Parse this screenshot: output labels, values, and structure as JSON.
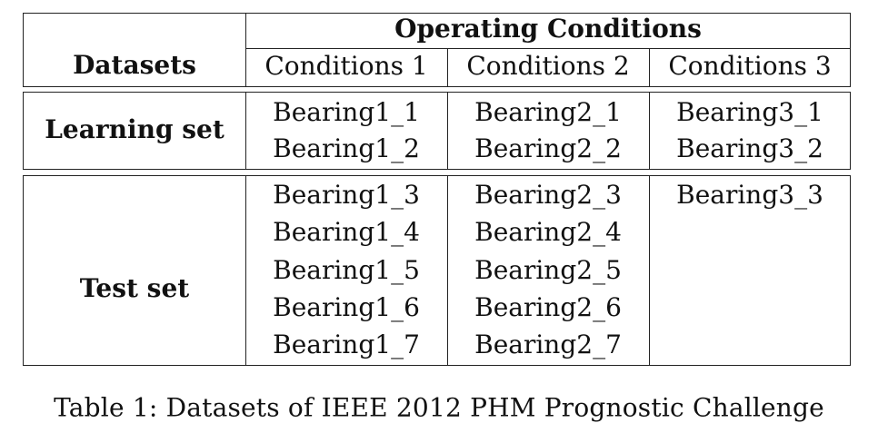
{
  "table": {
    "header": {
      "group_label": "Operating Conditions",
      "row_label": "Datasets",
      "columns": [
        "Conditions 1",
        "Conditions 2",
        "Conditions 3"
      ]
    },
    "learning_set": {
      "label": "Learning set",
      "rows": [
        [
          "Bearing1_1",
          "Bearing2_1",
          "Bearing3_1"
        ],
        [
          "Bearing1_2",
          "Bearing2_2",
          "Bearing3_2"
        ]
      ]
    },
    "test_set": {
      "label": "Test set",
      "rows": [
        [
          "Bearing1_3",
          "Bearing2_3",
          "Bearing3_3"
        ],
        [
          "Bearing1_4",
          "Bearing2_4",
          ""
        ],
        [
          "Bearing1_5",
          "Bearing2_5",
          ""
        ],
        [
          "Bearing1_6",
          "Bearing2_6",
          ""
        ],
        [
          "Bearing1_7",
          "Bearing2_7",
          ""
        ]
      ]
    }
  },
  "caption": "Table 1: Datasets of IEEE 2012 PHM Prognostic Challenge"
}
